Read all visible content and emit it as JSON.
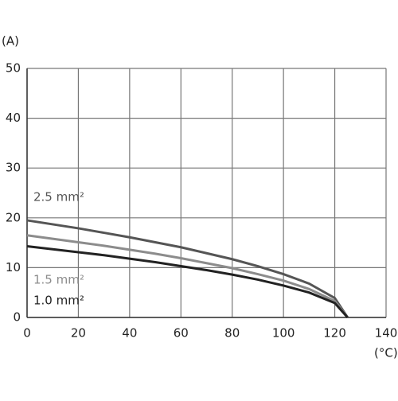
{
  "chart_data": {
    "type": "line",
    "y_label": "(A)",
    "x_label": "(°C)",
    "x": [
      0,
      10,
      20,
      30,
      40,
      50,
      60,
      70,
      80,
      90,
      100,
      110,
      120,
      125
    ],
    "series": [
      {
        "name": "2.5 mm²",
        "color": "#555555",
        "values": [
          19.5,
          18.7,
          17.9,
          17.0,
          16.1,
          15.1,
          14.1,
          12.9,
          11.7,
          10.3,
          8.7,
          6.8,
          3.9,
          0
        ]
      },
      {
        "name": "1.5 mm²",
        "color": "#8c8c8c",
        "values": [
          16.5,
          15.8,
          15.1,
          14.4,
          13.6,
          12.8,
          11.9,
          10.9,
          9.9,
          8.7,
          7.4,
          5.7,
          3.3,
          0
        ]
      },
      {
        "name": "1.0 mm²",
        "color": "#222222",
        "values": [
          14.3,
          13.7,
          13.1,
          12.5,
          11.8,
          11.1,
          10.3,
          9.5,
          8.6,
          7.6,
          6.4,
          5.0,
          2.9,
          0
        ]
      }
    ],
    "xlim": [
      0,
      140
    ],
    "xticks": [
      0,
      20,
      40,
      60,
      80,
      100,
      120,
      140
    ],
    "ylim": [
      0,
      50
    ],
    "yticks": [
      0,
      10,
      20,
      30,
      40,
      50
    ],
    "grid": true
  }
}
